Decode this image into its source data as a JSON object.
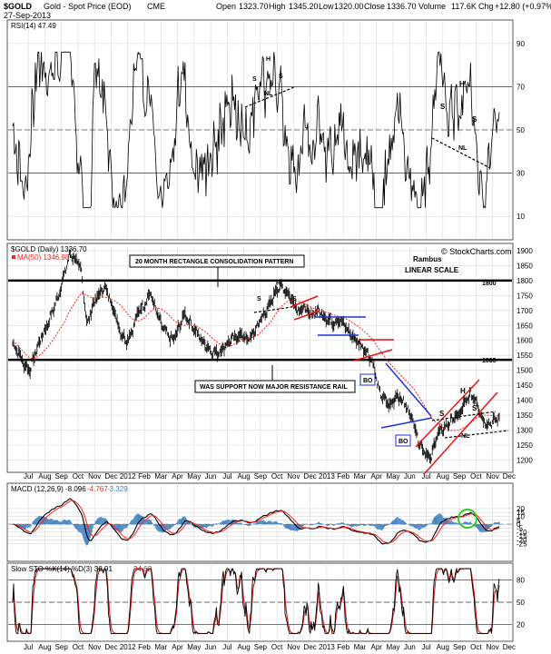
{
  "header": {
    "symbol": "$GOLD",
    "name": "Gold - Spot Price (EOD)",
    "exchange": "CME",
    "date": "27-Sep-2013",
    "open_label": "Open",
    "open": "1323.70",
    "high_label": "High",
    "high": "1345.20",
    "low_label": "Low",
    "low": "1320.00",
    "close_label": "Close",
    "close": "1336.70",
    "volume_label": "Volume",
    "volume": "117.6K",
    "chg_label": "Chg",
    "chg": "+12.80 (+0.97%)",
    "watermark": "© StockCharts.com"
  },
  "colors": {
    "price": "#000000",
    "ma": "#ff2020",
    "macd_signal": "#ff2020",
    "histogram": "#3d7fc0",
    "sto_d": "#d02020",
    "grid": "#d9d9d9",
    "blue_trend": "#1f33d8",
    "red_trend": "#ee1111",
    "circle": "#33cc22"
  },
  "chart_data": [
    {
      "id": "rsi",
      "type": "line",
      "label": "RSI(14) 47.49",
      "ylim": [
        0,
        100
      ],
      "y_ticks": [
        10,
        30,
        50,
        70,
        90
      ],
      "reference_lines": [
        30,
        50,
        70
      ],
      "annotations": [
        "S",
        "H",
        "S",
        "NL",
        "S",
        "H",
        "S",
        "NL"
      ]
    },
    {
      "id": "price",
      "type": "line",
      "label": "$GOLD (Daily) 1336.70",
      "ma_label": "MA(50) 1346.98",
      "scale": "LINEAR SCALE",
      "author": "Rambus",
      "ylim": [
        1165,
        1915
      ],
      "y_ticks": [
        1200,
        1250,
        1300,
        1350,
        1400,
        1450,
        1500,
        1550,
        1600,
        1650,
        1700,
        1750,
        1800,
        1850,
        1900
      ],
      "horizontal_lines": [
        {
          "value": 1800,
          "label": "1800"
        },
        {
          "value": 1535,
          "label": "1535"
        }
      ],
      "annotations": {
        "rectangle": "20 MONTH RECTANGLE CONSOLIDATION PATTERN",
        "resistance": "WAS SUPPORT NOW MAJOR RESISTANCE RAIL",
        "bo1": "BO",
        "bo2": "BO",
        "hs_left": [
          "S",
          "H",
          "S"
        ],
        "hs_right": [
          "S",
          "H",
          "S",
          "NL"
        ]
      },
      "series": [
        {
          "name": "$GOLD (Daily)",
          "values": [
            1590,
            1560,
            1520,
            1500,
            1560,
            1610,
            1650,
            1700,
            1750,
            1820,
            1890,
            1870,
            1830,
            1650,
            1720,
            1750,
            1780,
            1740,
            1680,
            1620,
            1600,
            1640,
            1700,
            1720,
            1760,
            1700,
            1650,
            1620,
            1600,
            1640,
            1690,
            1660,
            1630,
            1600,
            1580,
            1560,
            1560,
            1580,
            1600,
            1610,
            1620,
            1600,
            1620,
            1660,
            1690,
            1720,
            1770,
            1780,
            1760,
            1730,
            1700,
            1710,
            1680,
            1700,
            1690,
            1670,
            1660,
            1670,
            1650,
            1620,
            1600,
            1580,
            1560,
            1520,
            1430,
            1400,
            1380,
            1420,
            1400,
            1370,
            1330,
            1260,
            1230,
            1200,
            1280,
            1300,
            1320,
            1340,
            1350,
            1390,
            1420,
            1400,
            1340,
            1320,
            1330,
            1340
          ]
        },
        {
          "name": "MA(50)",
          "values": [
            1600,
            1580,
            1560,
            1540,
            1540,
            1555,
            1575,
            1600,
            1630,
            1660,
            1700,
            1730,
            1760,
            1750,
            1740,
            1745,
            1745,
            1740,
            1730,
            1715,
            1690,
            1670,
            1665,
            1675,
            1695,
            1710,
            1705,
            1690,
            1670,
            1655,
            1650,
            1655,
            1648,
            1638,
            1623,
            1605,
            1590,
            1580,
            1580,
            1590,
            1600,
            1605,
            1610,
            1620,
            1640,
            1660,
            1690,
            1715,
            1730,
            1735,
            1730,
            1722,
            1712,
            1704,
            1699,
            1692,
            1685,
            1680,
            1675,
            1664,
            1651,
            1637,
            1620,
            1600,
            1571,
            1545,
            1520,
            1500,
            1480,
            1460,
            1440,
            1410,
            1380,
            1345,
            1325,
            1310,
            1300,
            1298,
            1300,
            1310,
            1325,
            1340,
            1350,
            1350,
            1348,
            1347
          ]
        }
      ]
    },
    {
      "id": "macd",
      "type": "line",
      "label": "MACD (12,26,9)",
      "macd_value": "-8.096",
      "signal_value": "-4.767",
      "hist_value": "-3.329",
      "ylim": [
        -45,
        50
      ],
      "y_ticks": [
        -25,
        -20,
        -15,
        -10,
        -5,
        0,
        5,
        10,
        15,
        20
      ],
      "reference_lines": [
        0
      ]
    },
    {
      "id": "sto",
      "type": "line",
      "label": "Slow STO %K(14) %D(3) 38.91",
      "d_value": "34.62",
      "ylim": [
        0,
        100
      ],
      "y_ticks": [
        20,
        50,
        80
      ],
      "reference_lines": [
        20,
        50,
        80
      ]
    }
  ],
  "x_axis": {
    "labels": [
      "Jul",
      "Aug",
      "Sep",
      "Oct",
      "Nov",
      "Dec",
      "2012",
      "Feb",
      "Mar",
      "Apr",
      "May",
      "Jun",
      "Jul",
      "Aug",
      "Sep",
      "Oct",
      "Nov",
      "Dec",
      "2013",
      "Feb",
      "Mar",
      "Apr",
      "May",
      "Jun",
      "Jul",
      "Aug",
      "Sep",
      "Oct",
      "Nov",
      "Dec"
    ]
  }
}
